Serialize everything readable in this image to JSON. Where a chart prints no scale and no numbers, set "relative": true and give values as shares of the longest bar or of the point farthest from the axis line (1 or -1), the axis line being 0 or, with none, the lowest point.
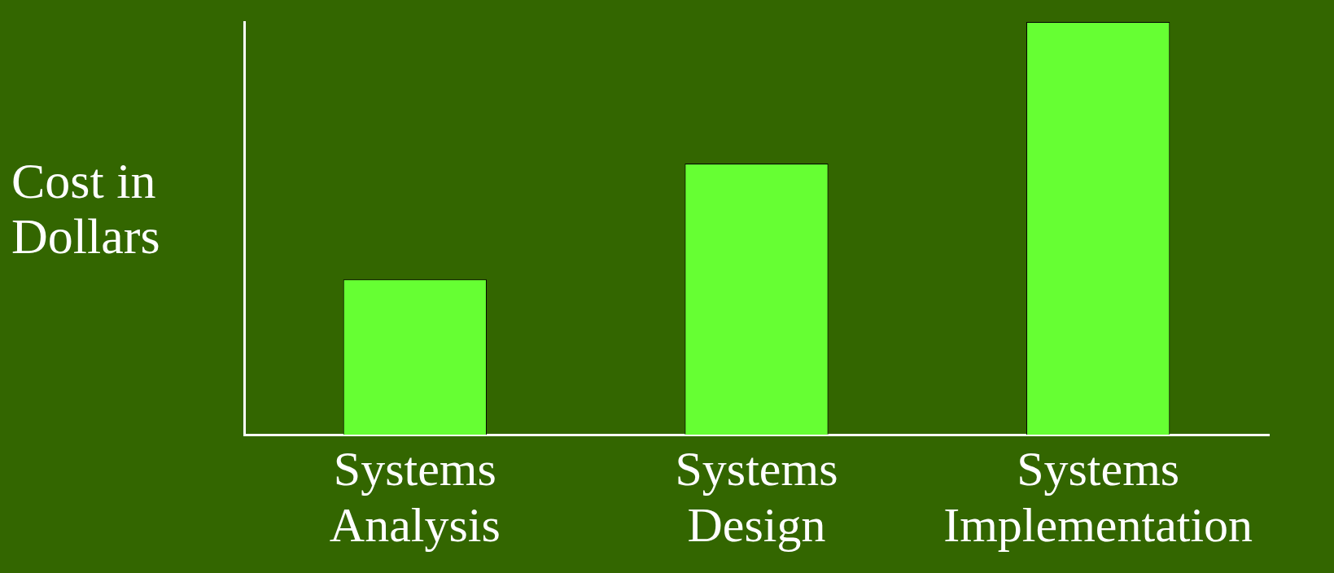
{
  "chart_data": {
    "type": "bar",
    "ylabel": "Cost in Dollars",
    "categories": [
      "Systems Analysis",
      "Systems Design",
      "Systems Implementation"
    ],
    "values": [
      0.376,
      0.657,
      1
    ],
    "color": "#66ff33",
    "relative": true
  }
}
